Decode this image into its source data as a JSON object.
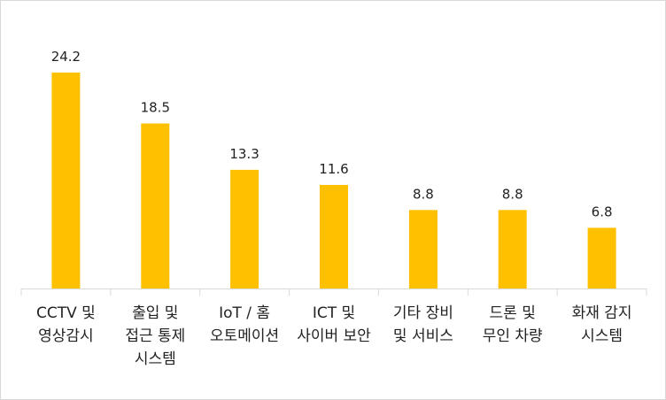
{
  "chart_data": {
    "type": "bar",
    "categories": [
      [
        "CCTV 및",
        "영상감시"
      ],
      [
        "출입 및",
        "접근 통제",
        "시스템"
      ],
      [
        "IoT / 홈",
        "오토메이션"
      ],
      [
        "ICT 및",
        "사이버 보안"
      ],
      [
        "기타 장비",
        "및 서비스"
      ],
      [
        "드론 및",
        "무인 차량"
      ],
      [
        "화재 감지",
        "시스템"
      ]
    ],
    "values": [
      24.2,
      18.5,
      13.3,
      11.6,
      8.8,
      8.8,
      6.8
    ],
    "data_labels": [
      "24.2",
      "18.5",
      "13.3",
      "11.6",
      "8.8",
      "8.8",
      "6.8"
    ],
    "title": "",
    "xlabel": "",
    "ylabel": "",
    "ylim": [
      0,
      25
    ],
    "grid": false,
    "legend": "none",
    "bar_color": "#FFC000",
    "axis_color": "#D9D9D9"
  }
}
